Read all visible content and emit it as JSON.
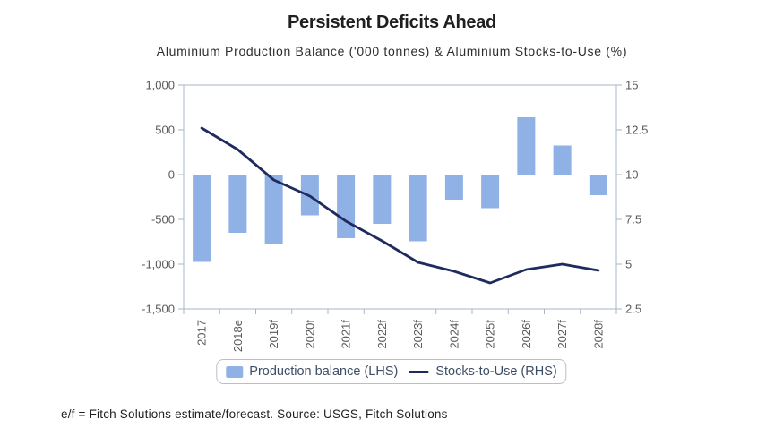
{
  "header": {
    "title": "Persistent Deficits Ahead",
    "subtitle": "Aluminium Production Balance ('000 tonnes) & Aluminium Stocks-to-Use (%)"
  },
  "footer": {
    "note": "e/f = Fitch Solutions estimate/forecast. Source: USGS, Fitch Solutions"
  },
  "legend": {
    "bar_label": "Production balance (LHS)",
    "line_label": "Stocks-to-Use (RHS)"
  },
  "colors": {
    "bar": "#8FB1E5",
    "line": "#1F2A5E",
    "axis": "#A8B6C8",
    "tick_label": "#595959"
  },
  "chart_data": {
    "type": "bar",
    "title": "Persistent Deficits Ahead",
    "subtitle": "Aluminium Production Balance ('000 tonnes) & Aluminium Stocks-to-Use (%)",
    "categories": [
      "2017",
      "2018e",
      "2019f",
      "2020f",
      "2021f",
      "2022f",
      "2023f",
      "2024f",
      "2025f",
      "2026f",
      "2027f",
      "2028f"
    ],
    "series": [
      {
        "name": "Production balance (LHS)",
        "type": "bar",
        "axis": "left",
        "values": [
          -975,
          -650,
          -775,
          -455,
          -710,
          -550,
          -745,
          -280,
          -375,
          640,
          325,
          -230
        ]
      },
      {
        "name": "Stocks-to-Use (RHS)",
        "type": "line",
        "axis": "right",
        "values": [
          12.6,
          11.4,
          9.7,
          8.8,
          7.4,
          6.3,
          5.1,
          4.6,
          3.95,
          4.7,
          5.0,
          4.65
        ]
      }
    ],
    "left_axis": {
      "label": "Production balance ('000 tonnes)",
      "min": -1500,
      "max": 1000,
      "tick_values": [
        1000,
        500,
        0,
        -500,
        -1000,
        -1500
      ],
      "tick_labels": [
        "1,000",
        "500",
        "0",
        "-500",
        "-1,000",
        "-1,500"
      ]
    },
    "right_axis": {
      "label": "Stocks-to-Use (%)",
      "min": 2.5,
      "max": 15,
      "tick_values": [
        15,
        12.5,
        10,
        7.5,
        5,
        2.5
      ],
      "tick_labels": [
        "15",
        "12.5",
        "10",
        "7.5",
        "5",
        "2.5"
      ]
    },
    "grid": false,
    "legend_position": "bottom"
  }
}
